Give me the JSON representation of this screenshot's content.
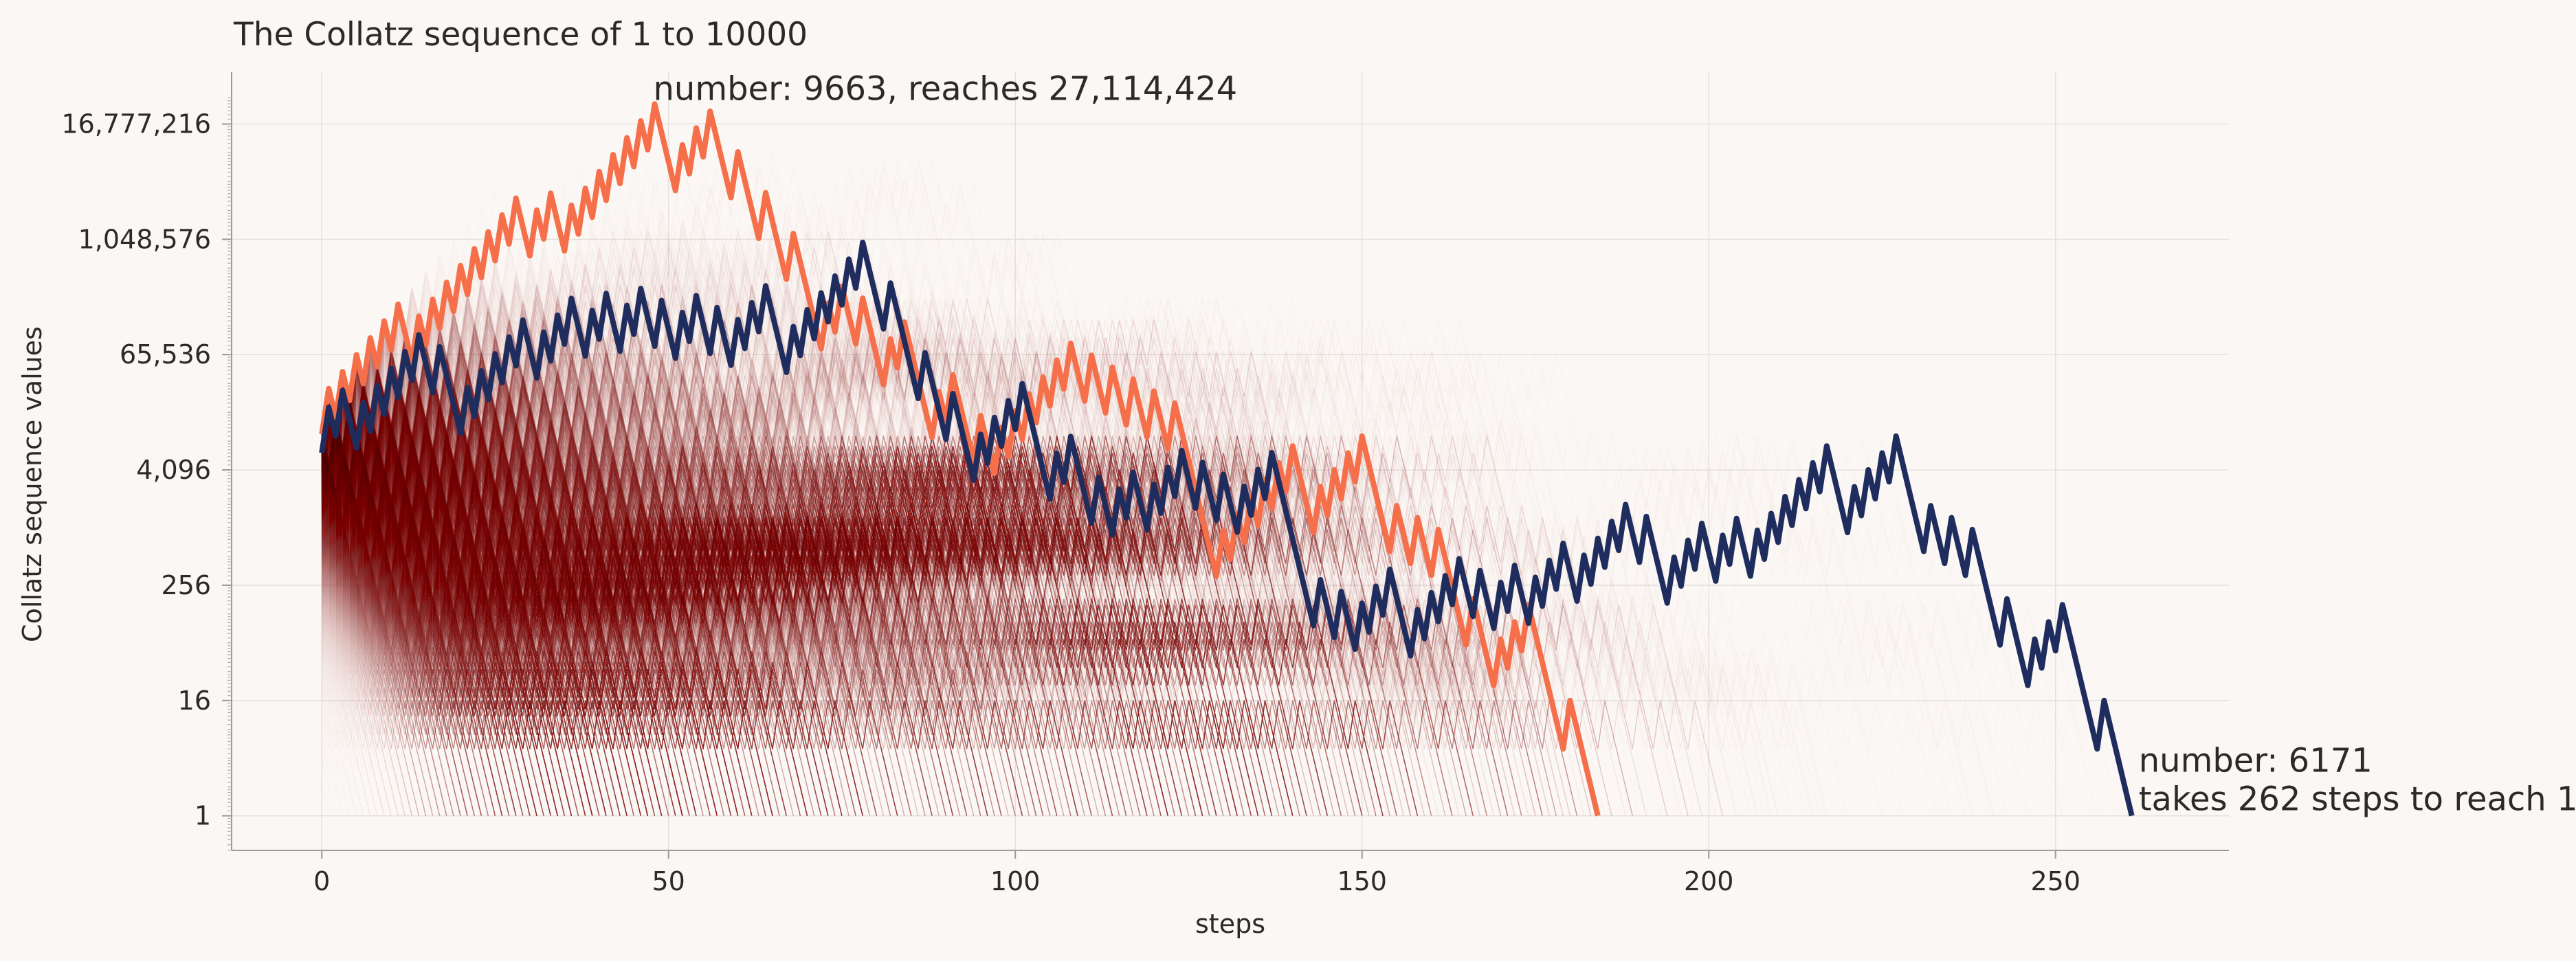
{
  "chart_data": {
    "type": "line",
    "title": "The Collatz sequence of 1 to 10000",
    "xlabel": "steps",
    "ylabel": "Collatz sequence values",
    "yscale": "log2",
    "xlim": [
      -13,
      275
    ],
    "ylim_log2": [
      -1.2,
      25.8
    ],
    "x_ticks": [
      0,
      50,
      100,
      150,
      200,
      250
    ],
    "y_ticks": [
      1,
      16,
      256,
      4096,
      65536,
      1048576,
      16777216
    ],
    "y_tick_labels": [
      "1",
      "16",
      "256",
      "4,096",
      "65,536",
      "1,048,576",
      "16,777,216"
    ],
    "grid": true,
    "background_range": [
      1,
      10000
    ],
    "background_color": "#8b1a3a",
    "series": [
      {
        "start": 9663,
        "color": "#f5704a",
        "max_value": 27114424
      },
      {
        "start": 6171,
        "color": "#1f2d5e",
        "steps": 262
      }
    ],
    "annotations": [
      {
        "lines": [
          "number: 9663, reaches 27,114,424"
        ],
        "anchor": "peak"
      },
      {
        "lines": [
          "number: 6171",
          "takes 262 steps to reach 1"
        ],
        "anchor": "end"
      }
    ]
  }
}
